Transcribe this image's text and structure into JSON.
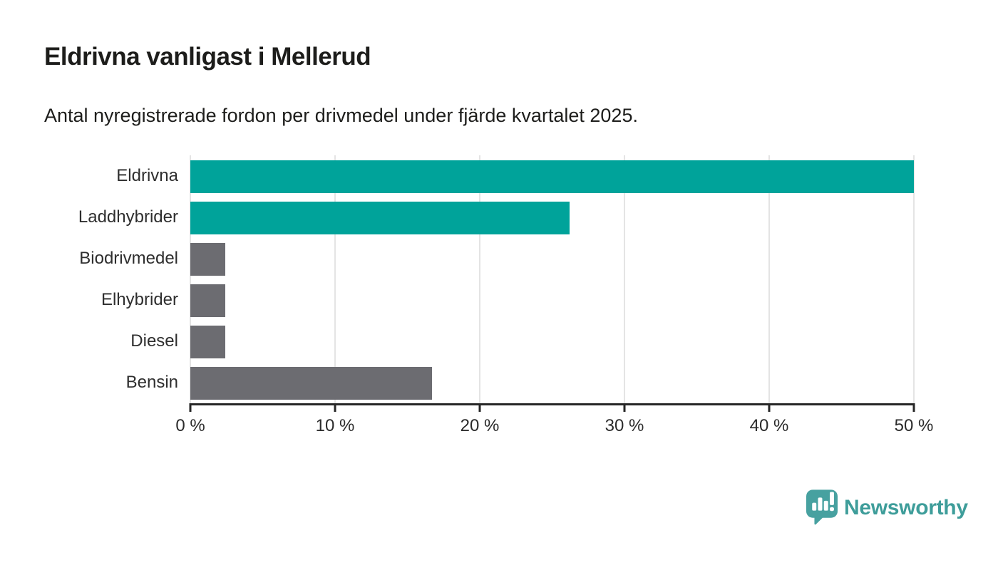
{
  "chart_data": {
    "type": "bar",
    "orientation": "horizontal",
    "title": "Eldrivna vanligast i Mellerud",
    "subtitle": "Antal nyregistrerade fordon per drivmedel under fjärde kvartalet 2025.",
    "categories": [
      "Eldrivna",
      "Laddhybrider",
      "Biodrivmedel",
      "Elhybrider",
      "Diesel",
      "Bensin"
    ],
    "values": [
      50,
      26.2,
      2.4,
      2.4,
      2.4,
      16.7
    ],
    "unit": "%",
    "bar_colors": [
      "#00a39a",
      "#00a39a",
      "#6c6c71",
      "#6c6c71",
      "#6c6c71",
      "#6c6c71"
    ],
    "xlabel": "",
    "ylabel": "",
    "xlim": [
      0,
      50
    ],
    "x_ticks": [
      {
        "value": 0,
        "label": "0 %"
      },
      {
        "value": 10,
        "label": "10 %"
      },
      {
        "value": 20,
        "label": "20 %"
      },
      {
        "value": 30,
        "label": "30 %"
      },
      {
        "value": 40,
        "label": "40 %"
      },
      {
        "value": 50,
        "label": "50 %"
      }
    ],
    "grid": "vertical",
    "legend": "none"
  },
  "colors": {
    "highlight": "#00a39a",
    "muted": "#6c6c71",
    "axis": "#262626",
    "gridline": "#e4e4e4",
    "text": "#1d1d1b"
  },
  "branding": {
    "name": "Newsworthy",
    "icon": "newsworthy-chart-bubble-icon",
    "icon_color": "#47a1a0",
    "text_color": "#3e9d9a"
  }
}
